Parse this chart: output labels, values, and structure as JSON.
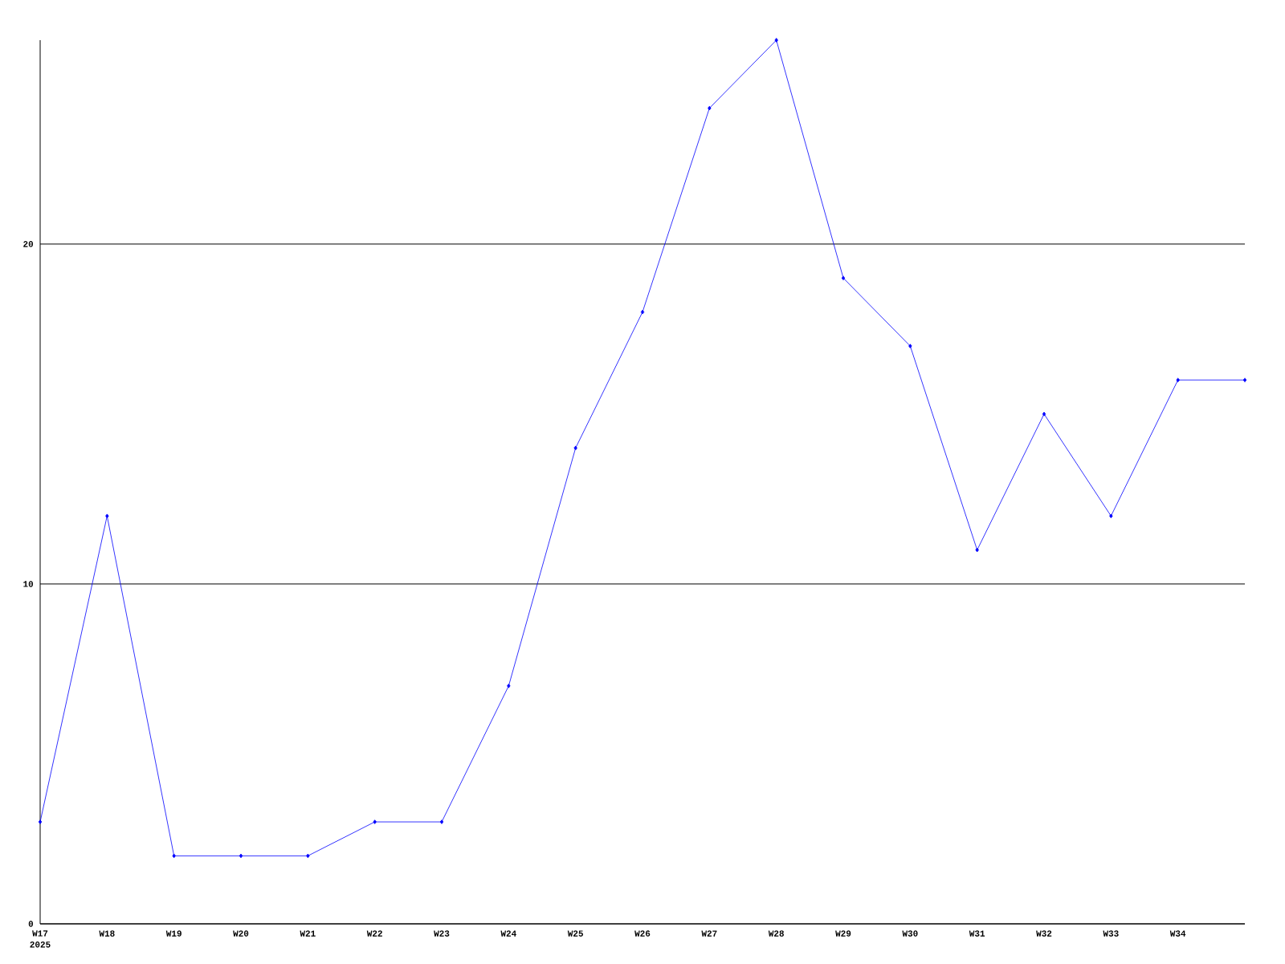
{
  "chart_data": {
    "type": "line",
    "categories": [
      "W17",
      "W18",
      "W19",
      "W20",
      "W21",
      "W22",
      "W23",
      "W24",
      "W25",
      "W26",
      "W27",
      "W28",
      "W29",
      "W30",
      "W31",
      "W32",
      "W33",
      "W34",
      null
    ],
    "series": [
      {
        "color": "#0000ff",
        "values": [
          3,
          12,
          2,
          2,
          2,
          3,
          3,
          7,
          14,
          18,
          24,
          26,
          19,
          17,
          11,
          15,
          12,
          16,
          16
        ]
      }
    ],
    "ylim": [
      0,
      26
    ],
    "yticks": [
      0,
      10,
      20
    ],
    "grid": "y",
    "marker": "diamond",
    "line_style": "solid",
    "annotations": [
      "2025"
    ]
  }
}
